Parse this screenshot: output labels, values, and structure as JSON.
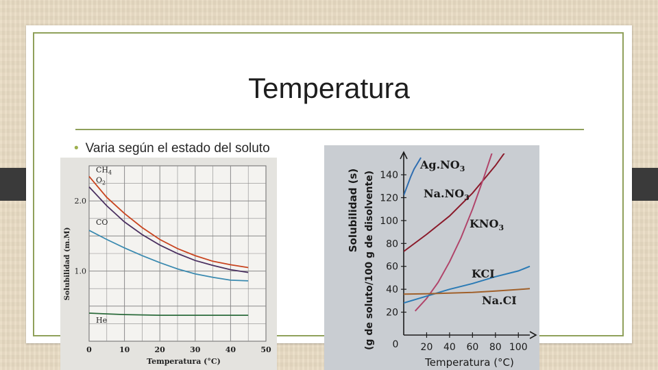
{
  "slide": {
    "title": "Temperatura",
    "bullet": "Varia según el estado del soluto"
  },
  "chart_data": [
    {
      "type": "line",
      "xlabel": "Temperatura (°C)",
      "ylabel": "Solubilidad (m.M)",
      "xlim": [
        0,
        50
      ],
      "ylim": [
        0,
        2.5
      ],
      "x_ticks": [
        "0",
        "10",
        "20",
        "30",
        "40",
        "50"
      ],
      "y_ticks": [
        "2.0",
        "1.0"
      ],
      "grid": true,
      "series": [
        {
          "name": "CH4",
          "label_sub": "4",
          "label_main": "CH",
          "color": "#c8431e",
          "x": [
            0,
            5,
            10,
            15,
            20,
            25,
            30,
            35,
            40,
            45
          ],
          "y": [
            2.35,
            2.05,
            1.82,
            1.62,
            1.45,
            1.32,
            1.22,
            1.14,
            1.09,
            1.05
          ]
        },
        {
          "name": "O2",
          "label_sub": "2",
          "label_main": "O",
          "color": "#4a3060",
          "x": [
            0,
            5,
            10,
            15,
            20,
            25,
            30,
            35,
            40,
            45
          ],
          "y": [
            2.2,
            1.93,
            1.7,
            1.52,
            1.37,
            1.25,
            1.15,
            1.08,
            1.02,
            0.98
          ]
        },
        {
          "name": "CO",
          "label_sub": "",
          "label_main": "CO",
          "color": "#3a8ab0",
          "x": [
            0,
            5,
            10,
            15,
            20,
            25,
            30,
            35,
            40,
            45
          ],
          "y": [
            1.58,
            1.45,
            1.33,
            1.22,
            1.12,
            1.03,
            0.96,
            0.91,
            0.87,
            0.86
          ]
        },
        {
          "name": "He",
          "label_sub": "",
          "label_main": "He",
          "color": "#2a6a3a",
          "x": [
            0,
            5,
            10,
            15,
            20,
            25,
            30,
            35,
            40,
            45
          ],
          "y": [
            0.4,
            0.39,
            0.38,
            0.375,
            0.37,
            0.37,
            0.37,
            0.37,
            0.37,
            0.37
          ]
        }
      ]
    },
    {
      "type": "line",
      "xlabel": "Temperatura (°C)",
      "ylabel": "Solubilidad (s)",
      "ylabel2": "(g de soluto/100 g de disolvente)",
      "xlim": [
        0,
        110
      ],
      "ylim": [
        0,
        155
      ],
      "x_ticks": [
        "0",
        "20",
        "40",
        "60",
        "80",
        "100"
      ],
      "y_ticks": [
        "20",
        "40",
        "60",
        "80",
        "100",
        "120",
        "140"
      ],
      "grid": false,
      "series": [
        {
          "name": "AgNO3",
          "label_main": "Ag.NO",
          "label_sub": "3",
          "color": "#2e6db0",
          "x": [
            0,
            3,
            6,
            9,
            12,
            15
          ],
          "y": [
            122,
            130,
            138,
            145,
            150,
            155
          ]
        },
        {
          "name": "NaNO3",
          "label_main": "Na.NO",
          "label_sub": "3",
          "color": "#8a1a2a",
          "x": [
            0,
            20,
            40,
            60,
            80,
            100
          ],
          "y": [
            73,
            88,
            104,
            124,
            148,
            176
          ]
        },
        {
          "name": "KNO3",
          "label_main": "KNO",
          "label_sub": "3",
          "color": "#b0446a",
          "x": [
            10,
            20,
            30,
            40,
            50,
            60,
            70,
            80
          ],
          "y": [
            21,
            32,
            46,
            64,
            85,
            110,
            138,
            168
          ]
        },
        {
          "name": "KCI",
          "label_main": "KCI",
          "label_sub": "",
          "color": "#2a7ab5",
          "x": [
            0,
            20,
            40,
            60,
            80,
            100,
            110
          ],
          "y": [
            28,
            34,
            40,
            45,
            51,
            56,
            60
          ]
        },
        {
          "name": "Na.CI",
          "label_main": "Na.CI",
          "label_sub": "",
          "color": "#a0602a",
          "x": [
            0,
            20,
            40,
            60,
            80,
            100,
            110
          ],
          "y": [
            35.7,
            36,
            36.6,
            37.3,
            38.4,
            39.8,
            40.5
          ]
        }
      ]
    }
  ]
}
